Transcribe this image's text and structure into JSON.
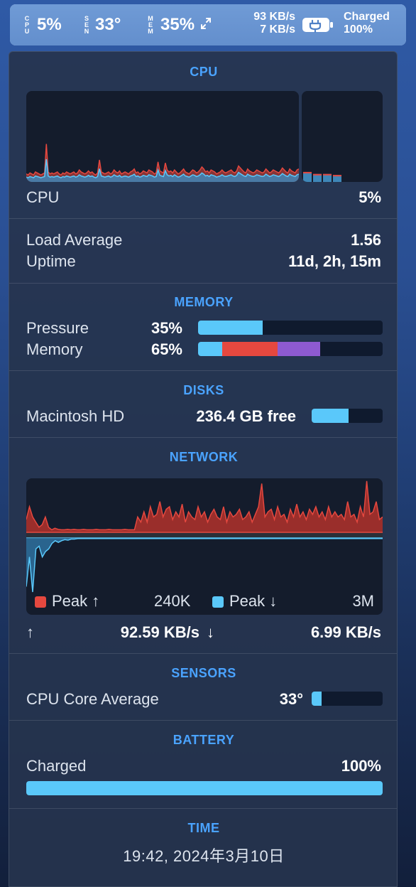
{
  "menubar": {
    "cpu_label": [
      "C",
      "P",
      "U"
    ],
    "cpu_value": "5%",
    "sen_label": [
      "S",
      "E",
      "N"
    ],
    "sen_value": "33°",
    "mem_label": [
      "M",
      "E",
      "M"
    ],
    "mem_value": "35%",
    "net_up": "93 KB/s",
    "net_down": "7 KB/s",
    "battery_status": "Charged",
    "battery_percent": "100%",
    "icons": [
      "arrows-expand-icon",
      "battery-plug-icon"
    ]
  },
  "cpu": {
    "title": "CPU",
    "label": "CPU",
    "value": "5%",
    "history_percent": [
      8,
      7,
      9,
      8,
      7,
      10,
      9,
      8,
      7,
      8,
      9,
      38,
      10,
      8,
      9,
      8,
      9,
      10,
      8,
      7,
      9,
      8,
      10,
      9,
      8,
      9,
      10,
      8,
      9,
      12,
      10,
      9,
      8,
      9,
      11,
      9,
      10,
      8,
      7,
      9,
      22,
      10,
      9,
      8,
      9,
      10,
      8,
      9,
      12,
      10,
      9,
      11,
      8,
      9,
      10,
      9,
      8,
      10,
      11,
      13,
      9,
      10,
      8,
      9,
      11,
      10,
      9,
      12,
      11,
      10,
      8,
      9,
      20,
      11,
      10,
      9,
      19,
      12,
      10,
      11,
      9,
      12,
      10,
      8,
      9,
      11,
      13,
      10,
      9,
      8,
      10,
      12,
      11,
      9,
      10,
      12,
      15,
      13,
      10,
      11,
      9,
      12,
      11,
      10,
      8,
      9,
      10,
      12,
      10,
      9,
      10,
      11,
      12,
      10,
      9,
      11,
      16,
      14,
      12,
      10,
      9,
      13,
      11,
      10,
      9,
      10,
      12,
      11,
      10,
      9,
      10,
      13,
      11,
      9,
      10,
      12,
      11,
      10,
      9,
      11,
      14,
      12,
      10,
      9,
      13,
      11,
      10,
      9,
      12,
      13
    ],
    "core_bars_percent": [
      10,
      8,
      8,
      7
    ],
    "load_average_label": "Load Average",
    "load_average": "1.56",
    "uptime_label": "Uptime",
    "uptime": "11d, 2h, 15m",
    "colors": {
      "user": "#5ac8fa",
      "system": "#e5483f"
    }
  },
  "memory": {
    "title": "MEMORY",
    "pressure_label": "Pressure",
    "pressure_value": "35%",
    "pressure_fraction": 0.35,
    "memory_label": "Memory",
    "memory_value": "65%",
    "memory_segments": [
      {
        "fraction": 0.13,
        "color": "#5ac8fa"
      },
      {
        "fraction": 0.3,
        "color": "#e5483f"
      },
      {
        "fraction": 0.23,
        "color": "#8e5ad1"
      }
    ]
  },
  "disks": {
    "title": "DISKS",
    "disk_label": "Macintosh HD",
    "disk_value": "236.4 GB free",
    "used_fraction": 0.52
  },
  "network": {
    "title": "NETWORK",
    "peak_up_label": "Peak ↑",
    "peak_up_value": "240K",
    "peak_down_label": "Peak ↓",
    "peak_down_value": "3M",
    "up_arrow": "↑",
    "up_rate": "92.59 KB/s",
    "down_arrow": "↓",
    "down_rate": "6.99 KB/s",
    "colors": {
      "upload": "#e5483f",
      "download": "#5ac8fa"
    },
    "upload_history": [
      0.25,
      0.5,
      0.3,
      0.2,
      0.1,
      0.15,
      0.3,
      0.1,
      0.05,
      0.08,
      0.06,
      0.05,
      0.05,
      0.06,
      0.05,
      0.06,
      0.05,
      0.05,
      0.06,
      0.05,
      0.05,
      0.05,
      0.06,
      0.05,
      0.05,
      0.05,
      0.06,
      0.05,
      0.05,
      0.05,
      0.05,
      0.06,
      0.05,
      0.05,
      0.05,
      0.3,
      0.2,
      0.4,
      0.2,
      0.5,
      0.3,
      0.35,
      0.6,
      0.3,
      0.45,
      0.5,
      0.25,
      0.4,
      0.3,
      0.55,
      0.2,
      0.4,
      0.3,
      0.25,
      0.5,
      0.3,
      0.4,
      0.2,
      0.35,
      0.45,
      0.3,
      0.25,
      0.5,
      0.2,
      0.4,
      0.3,
      0.35,
      0.45,
      0.25,
      0.3,
      0.4,
      0.2,
      0.35,
      0.5,
      0.95,
      0.3,
      0.4,
      0.45,
      0.25,
      0.5,
      0.3,
      0.35,
      0.2,
      0.45,
      0.3,
      0.55,
      0.3,
      0.4,
      0.25,
      0.45,
      0.35,
      0.5,
      0.3,
      0.4,
      0.25,
      0.5,
      0.3,
      0.4,
      0.3,
      0.35,
      0.25,
      0.6,
      0.3,
      0.35,
      0.2,
      0.5,
      0.3,
      1.0,
      0.35,
      0.4,
      0.6,
      0.25,
      0.3
    ],
    "download_history": [
      0.9,
      0.35,
      1.0,
      0.2,
      0.15,
      0.35,
      0.25,
      0.2,
      0.1,
      0.05,
      0.08,
      0.05,
      0.03,
      0.04,
      0.02,
      0.02,
      0.01,
      0.01,
      0.01,
      0.01,
      0.01,
      0.01,
      0.01,
      0.01,
      0.01,
      0.01,
      0.01,
      0.01,
      0.01,
      0.01,
      0.01,
      0.01,
      0.01,
      0.01,
      0.01,
      0.01,
      0.01,
      0.01,
      0.01,
      0.01,
      0.01,
      0.01,
      0.01,
      0.01,
      0.01,
      0.01,
      0.01,
      0.01,
      0.01,
      0.01,
      0.01,
      0.01,
      0.01,
      0.01,
      0.01,
      0.01,
      0.01,
      0.01,
      0.01,
      0.01,
      0.01,
      0.01,
      0.01,
      0.01,
      0.01,
      0.01,
      0.01,
      0.01,
      0.01,
      0.01,
      0.01,
      0.01,
      0.01,
      0.01,
      0.01,
      0.01,
      0.01,
      0.01,
      0.01,
      0.01,
      0.01,
      0.01,
      0.01,
      0.01,
      0.01,
      0.01,
      0.01,
      0.01,
      0.01,
      0.01,
      0.01,
      0.01,
      0.01,
      0.01,
      0.01,
      0.01,
      0.01,
      0.01,
      0.01,
      0.01,
      0.01,
      0.01,
      0.01,
      0.01,
      0.01,
      0.01,
      0.01,
      0.01,
      0.01,
      0.01,
      0.01,
      0.01
    ]
  },
  "sensors": {
    "title": "SENSORS",
    "sensor_label": "CPU Core Average",
    "sensor_value": "33°",
    "sensor_fraction": 0.14
  },
  "battery": {
    "title": "BATTERY",
    "status_label": "Charged",
    "percent": "100%",
    "fraction": 1.0
  },
  "time": {
    "title": "TIME",
    "value": "19:42, 2024年3月10日"
  }
}
